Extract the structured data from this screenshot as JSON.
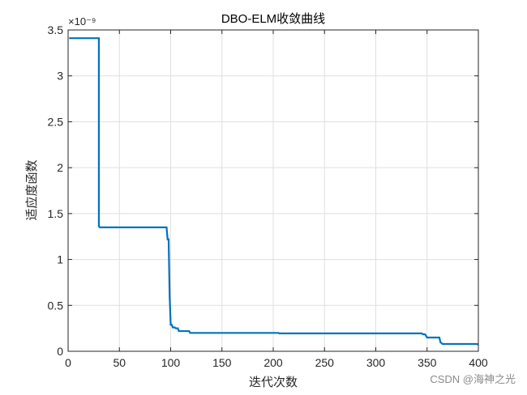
{
  "chart_data": {
    "type": "line",
    "title": "DBO-ELM收敛曲线",
    "xlabel": "迭代次数",
    "ylabel": "适应度函数",
    "y_exponent": "×10⁻⁹",
    "xlim": [
      0,
      400
    ],
    "ylim": [
      0,
      3.5
    ],
    "grid": true,
    "x_ticks": [
      0,
      50,
      100,
      150,
      200,
      250,
      300,
      350,
      400
    ],
    "y_ticks": [
      0,
      0.5,
      1,
      1.5,
      2,
      2.5,
      3,
      3.5
    ],
    "x_tick_labels": [
      "0",
      "50",
      "100",
      "150",
      "200",
      "250",
      "300",
      "350",
      "400"
    ],
    "y_tick_labels": [
      "0",
      "0.5",
      "1",
      "1.5",
      "2",
      "2.5",
      "3",
      "3.5"
    ],
    "series": [
      {
        "color": "#0072BD",
        "x": [
          1,
          30,
          30,
          31,
          96,
          97,
          98,
          99,
          100,
          100,
          101,
          102,
          104,
          105,
          107,
          108,
          110,
          112,
          113,
          118,
          119,
          205,
          206,
          345,
          346,
          348,
          350,
          351,
          362,
          363,
          364,
          365,
          398,
          400
        ],
        "y": [
          3.41,
          3.41,
          1.36,
          1.35,
          1.35,
          1.22,
          1.22,
          0.6,
          0.3,
          0.29,
          0.29,
          0.26,
          0.26,
          0.25,
          0.25,
          0.22,
          0.22,
          0.22,
          0.22,
          0.22,
          0.2,
          0.2,
          0.195,
          0.195,
          0.185,
          0.185,
          0.15,
          0.15,
          0.15,
          0.1,
          0.09,
          0.08,
          0.08,
          0.075
        ]
      }
    ]
  },
  "watermark": "CSDN @海神之光"
}
